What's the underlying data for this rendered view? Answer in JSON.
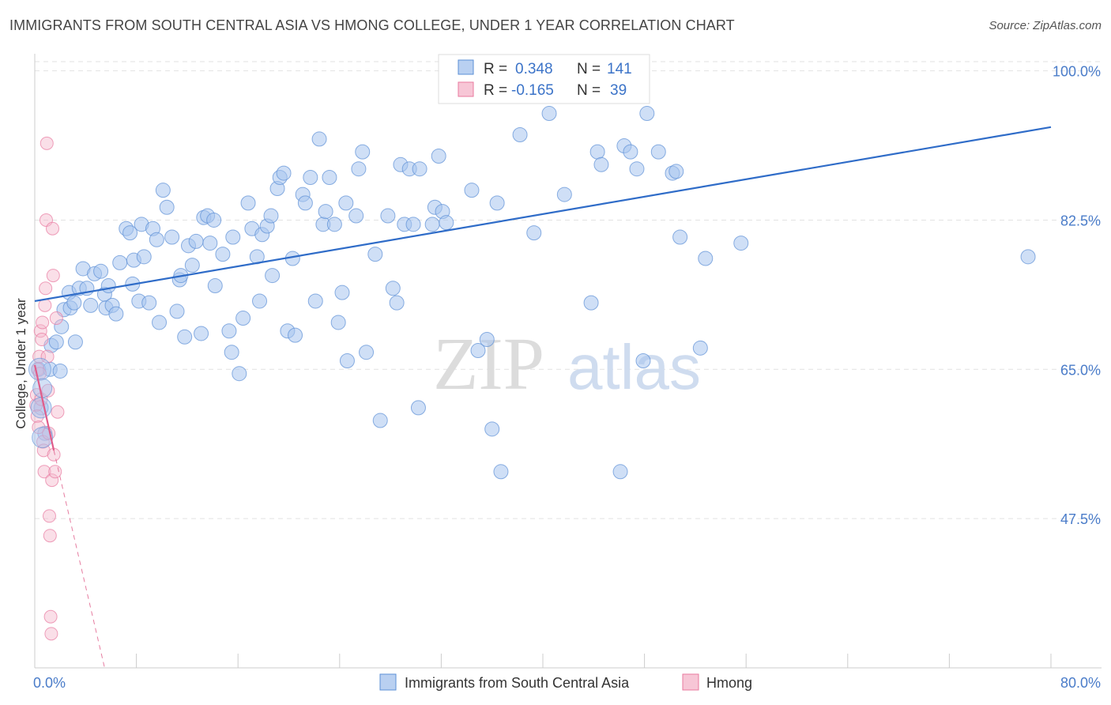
{
  "header": {
    "title": "IMMIGRANTS FROM SOUTH CENTRAL ASIA VS HMONG COLLEGE, UNDER 1 YEAR CORRELATION CHART",
    "source": "Source: ZipAtlas.com"
  },
  "watermark": {
    "zip": "ZIP",
    "atlas": "atlas"
  },
  "stats": {
    "r_label": "R =",
    "n_label": "N =",
    "rows": [
      {
        "r": "0.348",
        "n": "141",
        "color": "#a8c4ee"
      },
      {
        "r": "-0.165",
        "n": "39",
        "color": "#f5b8cc"
      }
    ]
  },
  "chart_data": {
    "type": "scatter",
    "title": "IMMIGRANTS FROM SOUTH CENTRAL ASIA VS HMONG COLLEGE, UNDER 1 YEAR CORRELATION CHART",
    "xlabel": "",
    "ylabel": "College, Under 1 year",
    "xlim": [
      0,
      80
    ],
    "ylim": [
      30,
      102
    ],
    "x_tick_labels": [
      {
        "value": 0,
        "label": "0.0%"
      },
      {
        "value": 80,
        "label": "80.0%"
      }
    ],
    "y_tick_labels": [
      {
        "value": 100,
        "label": "100.0%"
      },
      {
        "value": 82.5,
        "label": "82.5%"
      },
      {
        "value": 65,
        "label": "65.0%"
      },
      {
        "value": 47.5,
        "label": "47.5%"
      }
    ],
    "grid": true,
    "legend_position": "bottom",
    "series": [
      {
        "name": "Immigrants from South Central Asia",
        "color": "#a8c4ee",
        "stroke": "#5b8fd6",
        "trend_color": "#2f6cc8",
        "trend": [
          [
            0,
            73.0
          ],
          [
            80,
            93.4
          ]
        ],
        "points": [
          [
            0.3,
            65
          ],
          [
            0.5,
            60.5
          ],
          [
            0.8,
            57.5
          ],
          [
            1.2,
            65
          ],
          [
            1.3,
            67.8
          ],
          [
            1.7,
            68.2
          ],
          [
            2,
            64.8
          ],
          [
            2.1,
            70
          ],
          [
            2.3,
            72
          ],
          [
            2.7,
            74
          ],
          [
            2.8,
            72.2
          ],
          [
            3.1,
            72.8
          ],
          [
            3.2,
            68.2
          ],
          [
            3.5,
            74.5
          ],
          [
            3.8,
            76.8
          ],
          [
            4.1,
            74.5
          ],
          [
            4.4,
            72.5
          ],
          [
            4.7,
            76.2
          ],
          [
            5.2,
            76.5
          ],
          [
            5.5,
            73.8
          ],
          [
            5.6,
            72.2
          ],
          [
            5.8,
            74.8
          ],
          [
            6.1,
            72.5
          ],
          [
            6.4,
            71.5
          ],
          [
            6.7,
            77.5
          ],
          [
            7.2,
            81.5
          ],
          [
            7.5,
            81
          ],
          [
            7.7,
            75
          ],
          [
            7.8,
            77.8
          ],
          [
            8.2,
            73
          ],
          [
            8.4,
            82
          ],
          [
            8.6,
            78.2
          ],
          [
            9,
            72.8
          ],
          [
            9.3,
            81.5
          ],
          [
            9.6,
            80.2
          ],
          [
            9.8,
            70.5
          ],
          [
            10.1,
            86
          ],
          [
            10.4,
            84
          ],
          [
            10.8,
            80.5
          ],
          [
            11.2,
            71.8
          ],
          [
            11.4,
            75.5
          ],
          [
            11.5,
            76
          ],
          [
            11.8,
            68.8
          ],
          [
            12.1,
            79.5
          ],
          [
            12.4,
            77.2
          ],
          [
            12.7,
            80
          ],
          [
            13.1,
            69.2
          ],
          [
            13.3,
            82.8
          ],
          [
            13.6,
            83
          ],
          [
            13.8,
            79.8
          ],
          [
            14.1,
            82.5
          ],
          [
            14.2,
            74.8
          ],
          [
            14.8,
            78.5
          ],
          [
            15.3,
            69.5
          ],
          [
            15.5,
            67
          ],
          [
            15.6,
            80.5
          ],
          [
            16.1,
            64.5
          ],
          [
            16.4,
            71
          ],
          [
            16.8,
            84.5
          ],
          [
            17.1,
            81.5
          ],
          [
            17.5,
            78.2
          ],
          [
            17.7,
            73
          ],
          [
            17.9,
            80.8
          ],
          [
            18.3,
            81.8
          ],
          [
            18.6,
            83
          ],
          [
            18.7,
            76
          ],
          [
            19.1,
            86.2
          ],
          [
            19.3,
            87.5
          ],
          [
            19.6,
            88
          ],
          [
            19.9,
            69.5
          ],
          [
            20.3,
            78
          ],
          [
            20.5,
            69
          ],
          [
            21.1,
            85.5
          ],
          [
            21.3,
            84.5
          ],
          [
            21.7,
            87.5
          ],
          [
            22.1,
            73
          ],
          [
            22.4,
            92
          ],
          [
            22.7,
            82
          ],
          [
            22.9,
            83.5
          ],
          [
            23.2,
            87.5
          ],
          [
            23.6,
            82
          ],
          [
            23.9,
            70.5
          ],
          [
            24.2,
            74
          ],
          [
            24.5,
            84.5
          ],
          [
            24.6,
            66
          ],
          [
            25.3,
            83
          ],
          [
            25.5,
            88.5
          ],
          [
            25.8,
            90.5
          ],
          [
            26.1,
            67
          ],
          [
            26.8,
            78.5
          ],
          [
            27.2,
            59
          ],
          [
            27.8,
            83
          ],
          [
            28.2,
            74.5
          ],
          [
            28.5,
            72.8
          ],
          [
            28.8,
            89
          ],
          [
            29.1,
            82
          ],
          [
            29.5,
            88.5
          ],
          [
            29.8,
            82
          ],
          [
            30.2,
            60.5
          ],
          [
            30.3,
            88.5
          ],
          [
            31.3,
            82
          ],
          [
            31.5,
            84
          ],
          [
            31.8,
            90
          ],
          [
            32.1,
            83.5
          ],
          [
            32.4,
            82.2
          ],
          [
            34.4,
            86
          ],
          [
            34.9,
            67.2
          ],
          [
            35.6,
            68.5
          ],
          [
            36,
            58
          ],
          [
            36.4,
            84.5
          ],
          [
            36.7,
            53
          ],
          [
            38.2,
            92.5
          ],
          [
            39.3,
            81
          ],
          [
            40.5,
            95
          ],
          [
            41.7,
            85.5
          ],
          [
            43.8,
            72.8
          ],
          [
            44.3,
            90.5
          ],
          [
            44.6,
            89
          ],
          [
            46.1,
            53
          ],
          [
            46.4,
            91.2
          ],
          [
            46.9,
            90.5
          ],
          [
            47.4,
            88.5
          ],
          [
            47.9,
            66
          ],
          [
            48.2,
            95
          ],
          [
            49.1,
            90.5
          ],
          [
            50.2,
            88
          ],
          [
            50.5,
            88.2
          ],
          [
            50.8,
            80.5
          ],
          [
            52.4,
            67.5
          ],
          [
            52.8,
            78
          ],
          [
            55.6,
            79.8
          ],
          [
            78.2,
            78.2
          ]
        ]
      },
      {
        "name": "Hmong",
        "color": "#f5b8cc",
        "stroke": "#e8799f",
        "trend_color": "#e05c8a",
        "trend": [
          [
            0,
            65.5
          ],
          [
            1.5,
            55.5
          ]
        ],
        "trend_dashed": [
          [
            1.5,
            55.5
          ],
          [
            5.5,
            30
          ]
        ],
        "points": [
          [
            0.1,
            60.8
          ],
          [
            0.15,
            62
          ],
          [
            0.2,
            59.5
          ],
          [
            0.25,
            65
          ],
          [
            0.3,
            58.2
          ],
          [
            0.35,
            66.5
          ],
          [
            0.4,
            64.5
          ],
          [
            0.45,
            69.5
          ],
          [
            0.5,
            61.5
          ],
          [
            0.55,
            68.5
          ],
          [
            0.6,
            70.5
          ],
          [
            0.65,
            56.5
          ],
          [
            0.7,
            55.5
          ],
          [
            0.75,
            53
          ],
          [
            0.8,
            72.5
          ],
          [
            0.85,
            74.5
          ],
          [
            0.9,
            82.5
          ],
          [
            0.95,
            91.5
          ],
          [
            1.0,
            66.5
          ],
          [
            1.05,
            62.5
          ],
          [
            1.1,
            57.5
          ],
          [
            1.15,
            47.8
          ],
          [
            1.2,
            45.5
          ],
          [
            1.25,
            36
          ],
          [
            1.3,
            34
          ],
          [
            1.35,
            52
          ],
          [
            1.4,
            81.5
          ],
          [
            1.45,
            76
          ],
          [
            1.5,
            55
          ],
          [
            1.6,
            53
          ],
          [
            1.7,
            71
          ],
          [
            1.8,
            60
          ]
        ]
      }
    ]
  }
}
